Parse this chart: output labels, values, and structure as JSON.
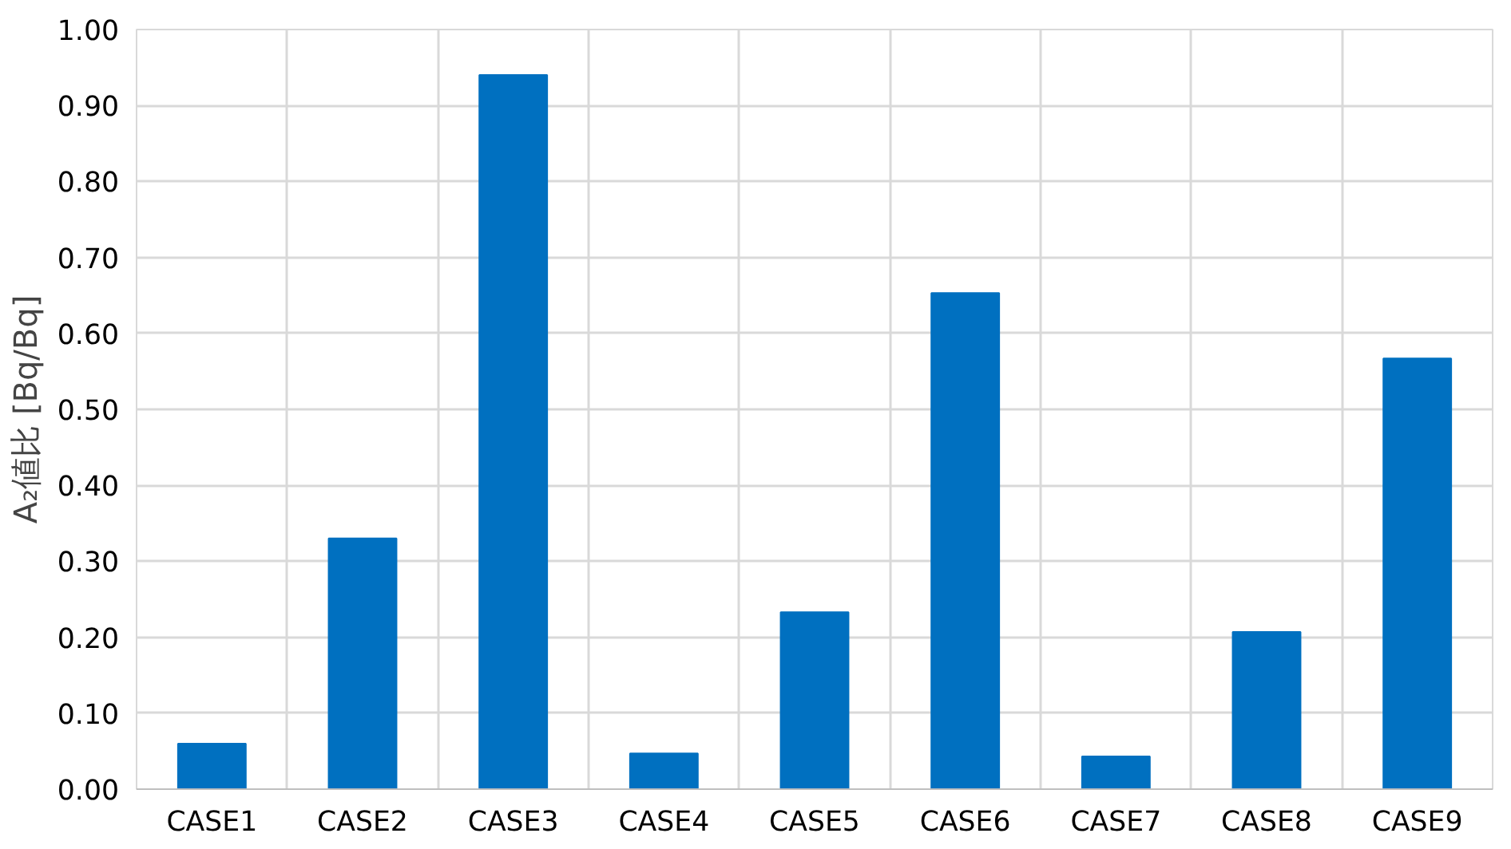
{
  "chart_data": {
    "type": "bar",
    "ylabel": "A₂値比 [Bq/Bq]",
    "categories": [
      "CASE1",
      "CASE2",
      "CASE3",
      "CASE4",
      "CASE5",
      "CASE6",
      "CASE7",
      "CASE8",
      "CASE9"
    ],
    "values": [
      0.06,
      0.33,
      0.94,
      0.047,
      0.233,
      0.653,
      0.043,
      0.207,
      0.567
    ],
    "color": "#0070c0",
    "ylim": [
      0,
      1
    ],
    "yticks": [
      {
        "value": 0,
        "label": "0.00"
      },
      {
        "value": 0.1,
        "label": "0.10"
      },
      {
        "value": 0.2,
        "label": "0.20"
      },
      {
        "value": 0.3,
        "label": "0.30"
      },
      {
        "value": 0.4,
        "label": "0.40"
      },
      {
        "value": 0.5,
        "label": "0.50"
      },
      {
        "value": 0.6,
        "label": "0.60"
      },
      {
        "value": 0.7,
        "label": "0.70"
      },
      {
        "value": 0.8,
        "label": "0.80"
      },
      {
        "value": 0.9,
        "label": "0.90"
      },
      {
        "value": 1,
        "label": "1.00"
      }
    ],
    "grid": true
  }
}
